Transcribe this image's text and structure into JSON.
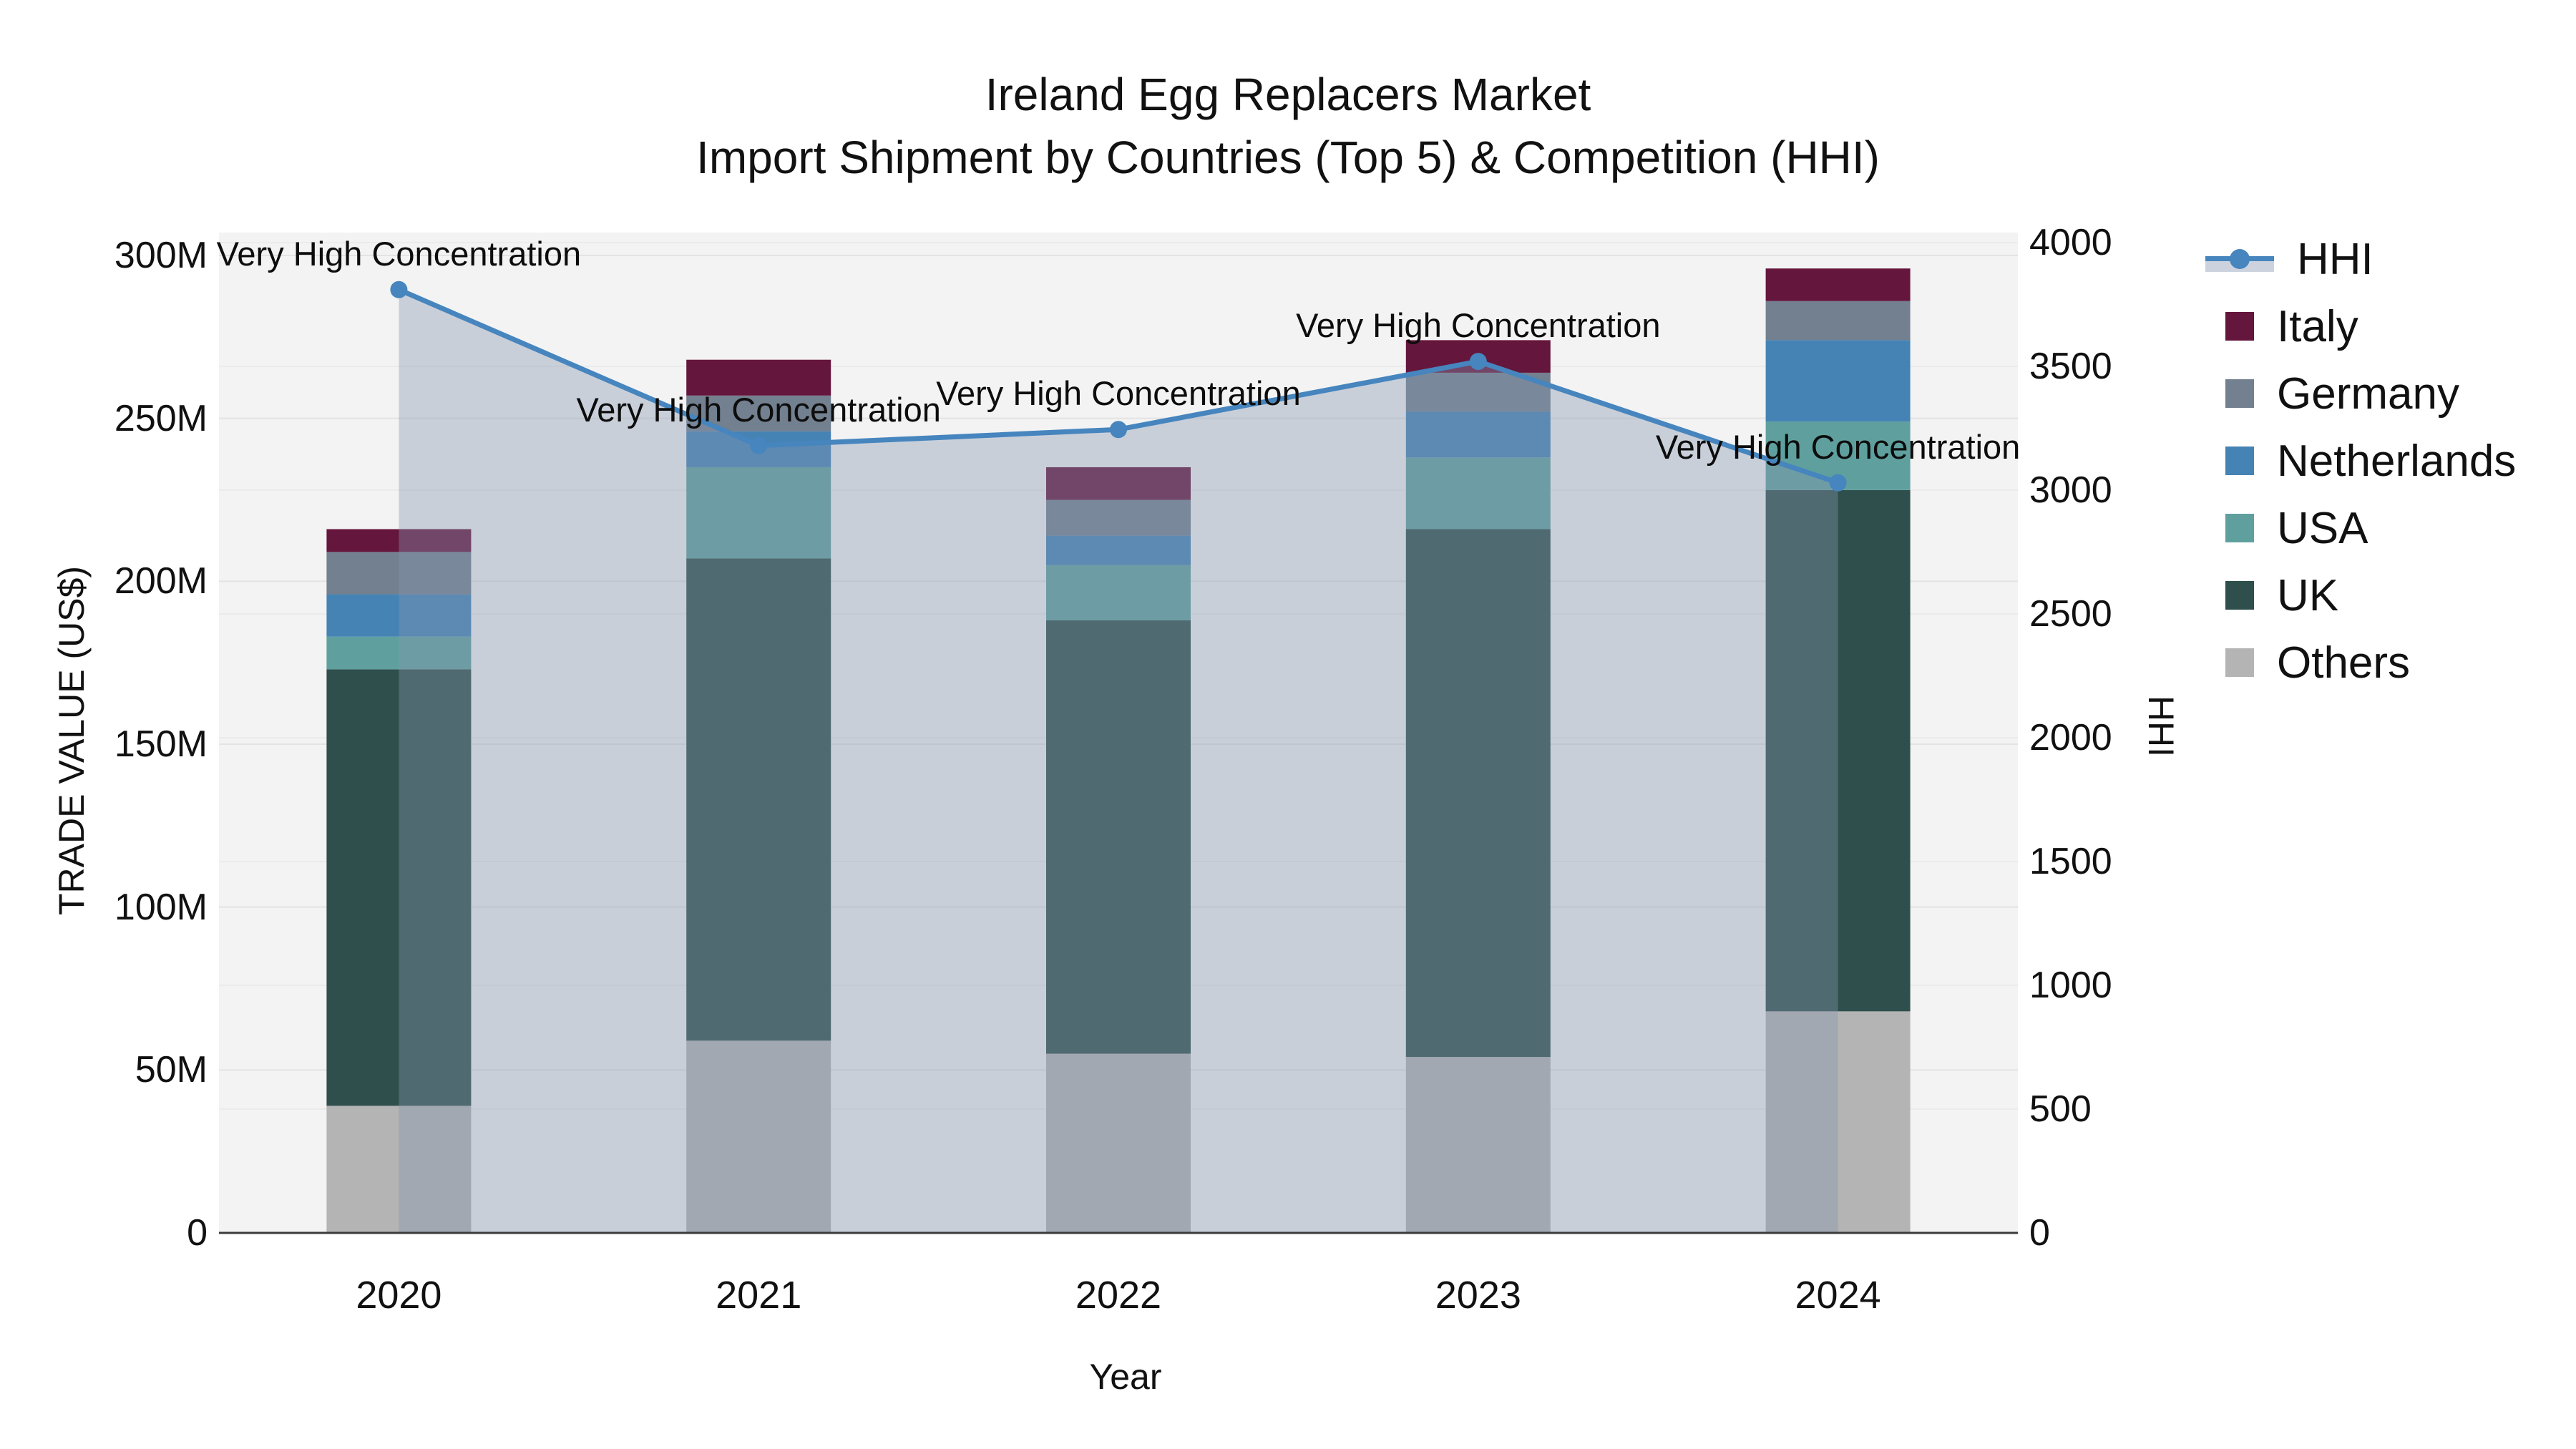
{
  "title": {
    "line1": "Ireland Egg Replacers Market",
    "line2": "Import Shipment by Countries (Top 5) & Competition (HHI)"
  },
  "chart_data": {
    "type": "bar+line",
    "title": "Ireland Egg Replacers Market Import Shipment by Countries (Top 5) & Competition (HHI)",
    "xlabel": "Year",
    "ylabel_left": "TRADE VALUE (US$)",
    "ylabel_right": "HHI",
    "categories": [
      "2020",
      "2021",
      "2022",
      "2023",
      "2024"
    ],
    "stacked_bar_series": [
      {
        "name": "Others",
        "color": "#b4b4b4",
        "values_musd": [
          39,
          59,
          55,
          54,
          68
        ]
      },
      {
        "name": "UK",
        "color": "#2f4f4c",
        "values_musd": [
          134,
          148,
          133,
          162,
          160
        ]
      },
      {
        "name": "USA",
        "color": "#5fa09e",
        "values_musd": [
          10,
          28,
          17,
          22,
          21
        ]
      },
      {
        "name": "Netherlands",
        "color": "#4583b5",
        "values_musd": [
          13,
          11,
          9,
          14,
          25
        ]
      },
      {
        "name": "Germany",
        "color": "#72808f",
        "values_musd": [
          13,
          11,
          11,
          12,
          12
        ]
      },
      {
        "name": "Italy",
        "color": "#65163c",
        "values_musd": [
          7,
          11,
          10,
          10,
          10
        ]
      }
    ],
    "bar_totals_musd": [
      216,
      268,
      235,
      274,
      296
    ],
    "line_series": {
      "name": "HHI",
      "color": "#4685be",
      "area_fill": "rgba(134,150,176,0.38)",
      "values": [
        3810,
        3180,
        3245,
        3520,
        3030
      ]
    },
    "annotations": [
      {
        "x": "2020",
        "text": "Very High Concentration"
      },
      {
        "x": "2021",
        "text": "Very High Concentration"
      },
      {
        "x": "2022",
        "text": "Very High Concentration"
      },
      {
        "x": "2023",
        "text": "Very High Concentration"
      },
      {
        "x": "2024",
        "text": "Very High Concentration"
      }
    ],
    "left_axis": {
      "title": "TRADE VALUE (US$)",
      "tick_labels": [
        "0",
        "50M",
        "100M",
        "150M",
        "200M",
        "250M",
        "300M"
      ],
      "tick_values": [
        0,
        50,
        100,
        150,
        200,
        250,
        300
      ],
      "range": [
        0,
        300
      ],
      "unit": "million US$"
    },
    "right_axis": {
      "title": "HHI",
      "tick_labels": [
        "0",
        "500",
        "1000",
        "1500",
        "2000",
        "2500",
        "3000",
        "3500",
        "4000"
      ],
      "tick_values": [
        0,
        500,
        1000,
        1500,
        2000,
        2500,
        3000,
        3500,
        4000
      ],
      "range": [
        0,
        4000
      ]
    },
    "x_axis": {
      "title": "Year"
    },
    "legend": {
      "position": "right",
      "items": [
        {
          "label": "HHI",
          "type": "line",
          "color": "#4685be"
        },
        {
          "label": "Italy",
          "type": "square",
          "color": "#65163c"
        },
        {
          "label": "Germany",
          "type": "square",
          "color": "#72808f"
        },
        {
          "label": "Netherlands",
          "type": "square",
          "color": "#4583b5"
        },
        {
          "label": "USA",
          "type": "square",
          "color": "#5fa09e"
        },
        {
          "label": "UK",
          "type": "square",
          "color": "#2f4f4c"
        },
        {
          "label": "Others",
          "type": "square",
          "color": "#b4b4b4"
        }
      ]
    },
    "style": {
      "plot_bg": "#f3f3f3",
      "grid_color_left": "#e3e3e3",
      "grid_color_right": "#ebebeb",
      "axis_line_color": "#3b3b3b",
      "annotation_color": "#0d0d0d"
    },
    "grid": true
  }
}
